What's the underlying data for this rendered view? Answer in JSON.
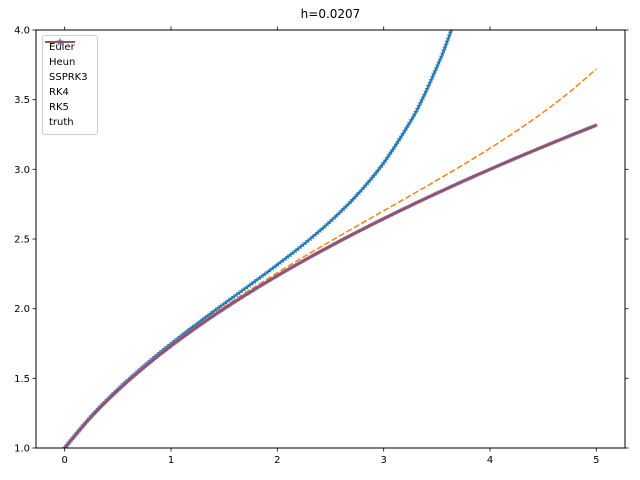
{
  "title": "h=0.0207",
  "chart_data": {
    "type": "line",
    "title": "h=0.0207",
    "xlabel": "",
    "ylabel": "",
    "xlim": [
      -0.27,
      5.27
    ],
    "ylim": [
      1.0,
      4.0
    ],
    "grid": false,
    "legend_position": "upper left",
    "background_color": "#ffffff",
    "axis_color": "#000000",
    "x_ticks": [
      0,
      1,
      2,
      3,
      4,
      5
    ],
    "x_tick_labels": [
      "0",
      "1",
      "2",
      "3",
      "4",
      "5"
    ],
    "y_ticks": [
      1.0,
      1.5,
      2.0,
      2.5,
      3.0,
      3.5,
      4.0
    ],
    "y_tick_labels": [
      "1.0",
      "1.5",
      "2.0",
      "2.5",
      "3.0",
      "3.5",
      "4.0"
    ],
    "series": [
      {
        "name": "Euler",
        "color": "#1f77b4",
        "linestyle": "solid",
        "marker": "star",
        "linewidth": 1.4,
        "x": [
          0,
          0.25,
          0.5,
          0.75,
          1,
          1.25,
          1.5,
          1.75,
          2,
          2.25,
          2.5,
          2.75,
          3,
          3.25,
          3.375,
          3.5,
          3.5625,
          3.625,
          3.6875
        ],
        "y": [
          1.003,
          1.2292,
          1.421,
          1.5913,
          1.7474,
          1.8939,
          2.0347,
          2.1734,
          2.3145,
          2.463,
          2.6267,
          2.8159,
          3.0464,
          3.341,
          3.5226,
          3.7342,
          3.8481,
          3.977,
          4.1171
        ]
      },
      {
        "name": "Heun",
        "color": "#ff7f0e",
        "linestyle": "dashed",
        "marker": "none",
        "linewidth": 1.5,
        "x": [
          0,
          0.25,
          0.5,
          0.75,
          1,
          1.25,
          1.5,
          1.75,
          2,
          2.25,
          2.5,
          2.75,
          3,
          3.25,
          3.5,
          3.75,
          4,
          4.25,
          4.5,
          4.75,
          5
        ],
        "y": [
          1.003,
          1.2285,
          1.4191,
          1.5874,
          1.7401,
          1.881,
          2.0131,
          2.138,
          2.2574,
          2.3724,
          2.4843,
          2.5939,
          2.7026,
          2.8111,
          2.9211,
          3.0339,
          3.1512,
          3.2754,
          3.4091,
          3.5557,
          3.7193
        ]
      },
      {
        "name": "SSPRK3",
        "color": "#2ca02c",
        "linestyle": "dashdot",
        "marker": "none",
        "linewidth": 1.5,
        "x": [
          0,
          0.25,
          0.5,
          0.75,
          1,
          1.25,
          1.5,
          1.75,
          2,
          2.25,
          2.5,
          2.75,
          3,
          3.25,
          3.5,
          3.75,
          4,
          4.25,
          4.5,
          4.75,
          5
        ],
        "y": [
          1.0,
          1.2247,
          1.4142,
          1.5811,
          1.7321,
          1.8708,
          2.0,
          2.1213,
          2.2361,
          2.3452,
          2.4495,
          2.5495,
          2.6458,
          2.7386,
          2.8284,
          2.9155,
          3.0,
          3.0822,
          3.1623,
          3.2404,
          3.3166
        ]
      },
      {
        "name": "RK4",
        "color": "#d62728",
        "linestyle": "dashed",
        "marker": "dot",
        "linewidth": 1.5,
        "x": [
          0,
          0.25,
          0.5,
          0.75,
          1,
          1.25,
          1.5,
          1.75,
          2,
          2.25,
          2.5,
          2.75,
          3,
          3.25,
          3.5,
          3.75,
          4,
          4.25,
          4.5,
          4.75,
          5
        ],
        "y": [
          1.0,
          1.2247,
          1.4142,
          1.5811,
          1.7321,
          1.8708,
          2.0,
          2.1213,
          2.2361,
          2.3452,
          2.4495,
          2.5495,
          2.6458,
          2.7386,
          2.8284,
          2.9155,
          3.0,
          3.0822,
          3.1623,
          3.2404,
          3.3166
        ]
      },
      {
        "name": "RK5",
        "color": "#9467bd",
        "linestyle": "dashed",
        "marker": "dot",
        "linewidth": 3.0,
        "x": [
          0,
          0.25,
          0.5,
          0.75,
          1,
          1.25,
          1.5,
          1.75,
          2,
          2.25,
          2.5,
          2.75,
          3,
          3.25,
          3.5,
          3.75,
          4,
          4.25,
          4.5,
          4.75,
          5
        ],
        "y": [
          1.0,
          1.2247,
          1.4142,
          1.5811,
          1.7321,
          1.8708,
          2.0,
          2.1213,
          2.2361,
          2.3452,
          2.4495,
          2.5495,
          2.6458,
          2.7386,
          2.8284,
          2.9155,
          3.0,
          3.0822,
          3.1623,
          3.2404,
          3.3166
        ]
      },
      {
        "name": "truth",
        "color": "#8c564b",
        "linestyle": "solid",
        "marker": "none",
        "linewidth": 1.8,
        "x": [
          0,
          0.25,
          0.5,
          0.75,
          1,
          1.25,
          1.5,
          1.75,
          2,
          2.25,
          2.5,
          2.75,
          3,
          3.25,
          3.5,
          3.75,
          4,
          4.25,
          4.5,
          4.75,
          5
        ],
        "y": [
          1.0,
          1.2247,
          1.4142,
          1.5811,
          1.7321,
          1.8708,
          2.0,
          2.1213,
          2.2361,
          2.3452,
          2.4495,
          2.5495,
          2.6458,
          2.7386,
          2.8284,
          2.9155,
          3.0,
          3.0822,
          3.1623,
          3.2404,
          3.3166
        ]
      }
    ]
  }
}
